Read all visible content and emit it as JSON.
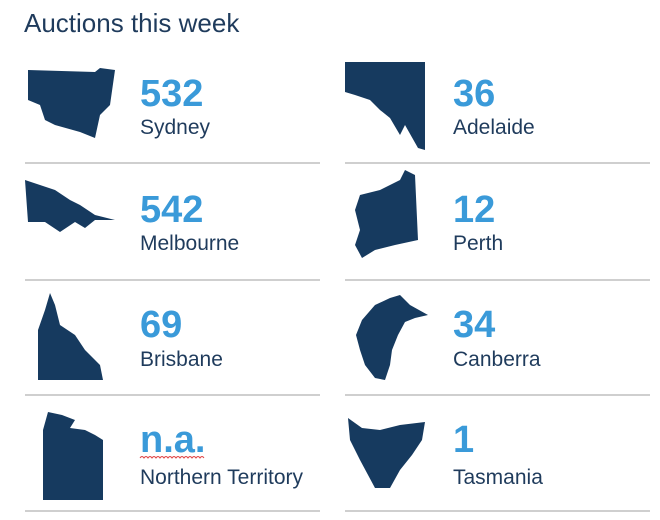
{
  "title": "Auctions this week",
  "items": [
    {
      "value": 532,
      "city": "Sydney"
    },
    {
      "value": 36,
      "city": "Adelaide"
    },
    {
      "value": 542,
      "city": "Melbourne"
    },
    {
      "value": 12,
      "city": "Perth"
    },
    {
      "value": 69,
      "city": "Brisbane"
    },
    {
      "value": 34,
      "city": "Canberra"
    },
    {
      "value": "n.a.",
      "city": "Northern Territory"
    },
    {
      "value": 1,
      "city": "Tasmania"
    }
  ]
}
